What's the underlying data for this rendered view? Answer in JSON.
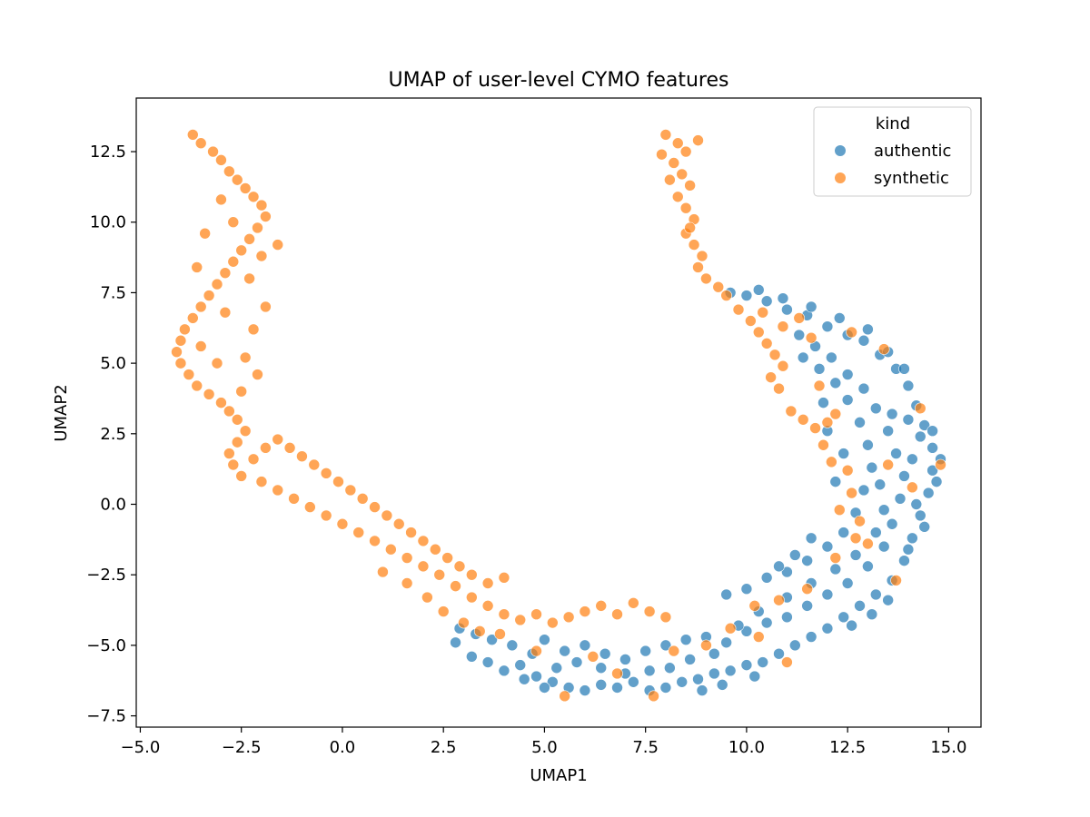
{
  "chart_data": {
    "type": "scatter",
    "title": "UMAP of user-level CYMO features",
    "xlabel": "UMAP1",
    "ylabel": "UMAP2",
    "xlim": [
      -5.1,
      15.8
    ],
    "ylim": [
      -7.9,
      14.4
    ],
    "xticks": [
      -5.0,
      -2.5,
      0.0,
      2.5,
      5.0,
      7.5,
      10.0,
      12.5,
      15.0
    ],
    "xtick_labels": [
      "−5.0",
      "−2.5",
      "0.0",
      "2.5",
      "5.0",
      "7.5",
      "10.0",
      "12.5",
      "15.0"
    ],
    "yticks": [
      -7.5,
      -5.0,
      -2.5,
      0.0,
      2.5,
      5.0,
      7.5,
      10.0,
      12.5
    ],
    "ytick_labels": [
      "−7.5",
      "−5.0",
      "−2.5",
      "0.0",
      "2.5",
      "5.0",
      "7.5",
      "10.0",
      "12.5"
    ],
    "grid": false,
    "legend": {
      "title": "kind",
      "placement": "top-right"
    },
    "series": [
      {
        "name": "authentic",
        "color": "#1f77b4",
        "points": [
          [
            2.8,
            -4.9
          ],
          [
            3.2,
            -5.4
          ],
          [
            3.6,
            -5.6
          ],
          [
            4.0,
            -5.9
          ],
          [
            4.4,
            -5.7
          ],
          [
            4.8,
            -6.1
          ],
          [
            5.2,
            -6.3
          ],
          [
            5.6,
            -6.5
          ],
          [
            6.0,
            -6.6
          ],
          [
            6.4,
            -6.4
          ],
          [
            6.8,
            -6.5
          ],
          [
            7.2,
            -6.3
          ],
          [
            7.6,
            -6.6
          ],
          [
            8.0,
            -6.5
          ],
          [
            8.4,
            -6.3
          ],
          [
            8.8,
            -6.2
          ],
          [
            9.2,
            -6.0
          ],
          [
            9.6,
            -5.9
          ],
          [
            10.0,
            -5.7
          ],
          [
            10.4,
            -5.6
          ],
          [
            10.8,
            -5.3
          ],
          [
            11.2,
            -5.0
          ],
          [
            11.6,
            -4.7
          ],
          [
            12.0,
            -4.4
          ],
          [
            12.4,
            -4.0
          ],
          [
            12.8,
            -3.6
          ],
          [
            13.2,
            -3.2
          ],
          [
            13.6,
            -2.7
          ],
          [
            13.9,
            -2.0
          ],
          [
            14.1,
            -1.2
          ],
          [
            14.3,
            -0.4
          ],
          [
            14.5,
            0.4
          ],
          [
            14.6,
            1.2
          ],
          [
            14.6,
            2.0
          ],
          [
            14.4,
            2.8
          ],
          [
            14.2,
            3.5
          ],
          [
            14.0,
            4.2
          ],
          [
            13.7,
            4.8
          ],
          [
            13.3,
            5.3
          ],
          [
            12.9,
            5.8
          ],
          [
            12.5,
            6.0
          ],
          [
            12.0,
            6.3
          ],
          [
            11.5,
            6.7
          ],
          [
            11.0,
            6.9
          ],
          [
            10.5,
            7.2
          ],
          [
            10.0,
            7.4
          ],
          [
            9.6,
            7.5
          ],
          [
            5.0,
            -4.8
          ],
          [
            5.5,
            -5.2
          ],
          [
            6.0,
            -5.0
          ],
          [
            6.5,
            -5.3
          ],
          [
            7.0,
            -5.5
          ],
          [
            7.5,
            -5.2
          ],
          [
            8.0,
            -5.0
          ],
          [
            8.5,
            -4.8
          ],
          [
            9.0,
            -4.7
          ],
          [
            9.5,
            -4.9
          ],
          [
            10.0,
            -4.5
          ],
          [
            10.5,
            -4.2
          ],
          [
            11.0,
            -4.0
          ],
          [
            11.5,
            -3.6
          ],
          [
            12.0,
            -3.2
          ],
          [
            12.5,
            -2.8
          ],
          [
            13.0,
            -2.2
          ],
          [
            13.4,
            -1.5
          ],
          [
            13.6,
            -0.7
          ],
          [
            13.8,
            0.2
          ],
          [
            13.9,
            1.0
          ],
          [
            13.7,
            1.8
          ],
          [
            13.5,
            2.6
          ],
          [
            13.2,
            3.4
          ],
          [
            12.9,
            4.1
          ],
          [
            12.5,
            4.6
          ],
          [
            12.1,
            5.2
          ],
          [
            11.7,
            5.6
          ],
          [
            11.3,
            6.0
          ],
          [
            9.5,
            -3.2
          ],
          [
            10.0,
            -3.0
          ],
          [
            10.5,
            -2.6
          ],
          [
            11.0,
            -2.4
          ],
          [
            11.5,
            -2.0
          ],
          [
            12.0,
            -1.5
          ],
          [
            12.4,
            -1.0
          ],
          [
            12.7,
            -0.3
          ],
          [
            12.9,
            0.5
          ],
          [
            13.1,
            1.3
          ],
          [
            13.0,
            2.1
          ],
          [
            12.8,
            2.9
          ],
          [
            12.5,
            3.7
          ],
          [
            12.2,
            4.3
          ],
          [
            11.8,
            4.8
          ],
          [
            11.4,
            5.2
          ],
          [
            11.0,
            -3.3
          ],
          [
            11.6,
            -2.8
          ],
          [
            12.2,
            -2.3
          ],
          [
            12.7,
            -1.8
          ],
          [
            13.2,
            -1.0
          ],
          [
            13.4,
            -0.2
          ],
          [
            13.3,
            0.7
          ],
          [
            13.6,
            3.2
          ],
          [
            14.0,
            3.0
          ],
          [
            14.3,
            2.4
          ],
          [
            14.1,
            1.6
          ],
          [
            14.4,
            -0.8
          ],
          [
            14.0,
            -1.6
          ],
          [
            12.2,
            0.8
          ],
          [
            12.4,
            1.8
          ],
          [
            12.0,
            2.6
          ],
          [
            11.9,
            3.6
          ],
          [
            11.6,
            -1.2
          ],
          [
            11.2,
            -1.8
          ],
          [
            10.8,
            -2.2
          ],
          [
            10.3,
            -3.8
          ],
          [
            9.8,
            -4.3
          ],
          [
            9.2,
            -5.3
          ],
          [
            8.6,
            -5.5
          ],
          [
            8.1,
            -5.8
          ],
          [
            7.6,
            -5.9
          ],
          [
            7.0,
            -6.0
          ],
          [
            6.4,
            -5.8
          ],
          [
            5.8,
            -5.6
          ],
          [
            5.3,
            -5.8
          ],
          [
            4.7,
            -5.3
          ],
          [
            4.2,
            -5.0
          ],
          [
            3.7,
            -4.8
          ],
          [
            3.3,
            -4.6
          ],
          [
            2.9,
            -4.4
          ],
          [
            4.5,
            -6.2
          ],
          [
            5.0,
            -6.5
          ],
          [
            8.9,
            -6.6
          ],
          [
            9.4,
            -6.4
          ],
          [
            10.2,
            -6.1
          ],
          [
            12.6,
            -4.3
          ],
          [
            13.1,
            -3.9
          ],
          [
            13.5,
            -3.4
          ],
          [
            14.2,
            0.0
          ],
          [
            14.7,
            0.8
          ],
          [
            14.8,
            1.6
          ],
          [
            14.6,
            2.6
          ],
          [
            13.9,
            4.8
          ],
          [
            13.5,
            5.4
          ],
          [
            13.0,
            6.2
          ],
          [
            12.3,
            6.6
          ],
          [
            11.6,
            7.0
          ],
          [
            10.9,
            7.3
          ],
          [
            10.3,
            7.6
          ]
        ]
      },
      {
        "name": "synthetic",
        "color": "#ff7f0e",
        "points": [
          [
            -3.7,
            13.1
          ],
          [
            -3.5,
            12.8
          ],
          [
            -3.2,
            12.5
          ],
          [
            -3.0,
            12.2
          ],
          [
            -2.8,
            11.8
          ],
          [
            -2.6,
            11.5
          ],
          [
            -2.4,
            11.2
          ],
          [
            -2.2,
            10.9
          ],
          [
            -2.0,
            10.6
          ],
          [
            -1.9,
            10.2
          ],
          [
            -2.1,
            9.8
          ],
          [
            -2.3,
            9.4
          ],
          [
            -2.5,
            9.0
          ],
          [
            -2.7,
            8.6
          ],
          [
            -2.9,
            8.2
          ],
          [
            -3.1,
            7.8
          ],
          [
            -3.3,
            7.4
          ],
          [
            -3.5,
            7.0
          ],
          [
            -3.7,
            6.6
          ],
          [
            -3.9,
            6.2
          ],
          [
            -4.0,
            5.8
          ],
          [
            -4.1,
            5.4
          ],
          [
            -4.0,
            5.0
          ],
          [
            -3.8,
            4.6
          ],
          [
            -3.6,
            4.2
          ],
          [
            -3.3,
            3.9
          ],
          [
            -3.0,
            3.6
          ],
          [
            -2.8,
            3.3
          ],
          [
            -2.6,
            3.0
          ],
          [
            -2.4,
            2.6
          ],
          [
            -2.6,
            2.2
          ],
          [
            -2.8,
            1.8
          ],
          [
            -2.7,
            1.4
          ],
          [
            -2.5,
            1.0
          ],
          [
            -2.2,
            1.6
          ],
          [
            -1.9,
            2.0
          ],
          [
            -1.6,
            2.3
          ],
          [
            -1.3,
            2.0
          ],
          [
            -1.0,
            1.7
          ],
          [
            -0.7,
            1.4
          ],
          [
            -0.4,
            1.1
          ],
          [
            -0.1,
            0.8
          ],
          [
            0.2,
            0.5
          ],
          [
            0.5,
            0.2
          ],
          [
            0.8,
            -0.1
          ],
          [
            1.1,
            -0.4
          ],
          [
            1.4,
            -0.7
          ],
          [
            1.7,
            -1.0
          ],
          [
            2.0,
            -1.3
          ],
          [
            2.3,
            -1.6
          ],
          [
            2.6,
            -1.9
          ],
          [
            2.9,
            -2.2
          ],
          [
            3.2,
            -2.5
          ],
          [
            3.6,
            -2.8
          ],
          [
            4.0,
            -2.6
          ],
          [
            -2.0,
            0.8
          ],
          [
            -1.6,
            0.5
          ],
          [
            -1.2,
            0.2
          ],
          [
            -0.8,
            -0.1
          ],
          [
            -0.4,
            -0.4
          ],
          [
            0.0,
            -0.7
          ],
          [
            0.4,
            -1.0
          ],
          [
            0.8,
            -1.3
          ],
          [
            1.2,
            -1.6
          ],
          [
            1.6,
            -1.9
          ],
          [
            2.0,
            -2.2
          ],
          [
            2.4,
            -2.5
          ],
          [
            2.8,
            -2.9
          ],
          [
            3.2,
            -3.3
          ],
          [
            3.6,
            -3.6
          ],
          [
            4.0,
            -3.9
          ],
          [
            4.4,
            -4.1
          ],
          [
            4.8,
            -3.9
          ],
          [
            5.2,
            -4.2
          ],
          [
            5.6,
            -4.0
          ],
          [
            6.0,
            -3.8
          ],
          [
            6.4,
            -3.6
          ],
          [
            6.8,
            -3.9
          ],
          [
            7.2,
            -3.5
          ],
          [
            7.6,
            -3.8
          ],
          [
            8.0,
            -4.0
          ],
          [
            2.5,
            -3.8
          ],
          [
            3.0,
            -4.2
          ],
          [
            3.4,
            -4.5
          ],
          [
            2.1,
            -3.3
          ],
          [
            1.6,
            -2.8
          ],
          [
            1.0,
            -2.4
          ],
          [
            -3.0,
            10.8
          ],
          [
            -2.7,
            10.0
          ],
          [
            -3.4,
            9.6
          ],
          [
            -2.3,
            8.0
          ],
          [
            -3.6,
            8.4
          ],
          [
            -2.9,
            6.8
          ],
          [
            -2.2,
            6.2
          ],
          [
            -3.5,
            5.6
          ],
          [
            -2.4,
            5.2
          ],
          [
            -2.1,
            4.6
          ],
          [
            -3.1,
            5.0
          ],
          [
            -2.5,
            4.0
          ],
          [
            -1.9,
            7.0
          ],
          [
            -2.0,
            8.8
          ],
          [
            -1.6,
            9.2
          ],
          [
            8.0,
            13.1
          ],
          [
            8.3,
            12.8
          ],
          [
            8.5,
            12.5
          ],
          [
            8.2,
            12.1
          ],
          [
            8.4,
            11.7
          ],
          [
            8.6,
            11.3
          ],
          [
            8.3,
            10.9
          ],
          [
            8.5,
            10.5
          ],
          [
            8.7,
            10.1
          ],
          [
            8.5,
            9.6
          ],
          [
            8.7,
            9.2
          ],
          [
            8.9,
            8.8
          ],
          [
            8.8,
            8.4
          ],
          [
            9.0,
            8.0
          ],
          [
            9.3,
            7.7
          ],
          [
            9.5,
            7.4
          ],
          [
            7.9,
            12.4
          ],
          [
            8.8,
            12.9
          ],
          [
            8.1,
            11.5
          ],
          [
            8.6,
            9.8
          ],
          [
            9.8,
            6.9
          ],
          [
            10.1,
            6.5
          ],
          [
            10.3,
            6.1
          ],
          [
            10.5,
            5.7
          ],
          [
            10.7,
            5.3
          ],
          [
            10.9,
            4.9
          ],
          [
            10.6,
            4.5
          ],
          [
            10.8,
            4.1
          ],
          [
            10.4,
            6.8
          ],
          [
            10.9,
            6.3
          ],
          [
            11.3,
            6.6
          ],
          [
            11.6,
            5.9
          ],
          [
            11.1,
            3.3
          ],
          [
            11.4,
            3.0
          ],
          [
            11.7,
            2.7
          ],
          [
            12.0,
            2.9
          ],
          [
            12.2,
            3.2
          ],
          [
            11.9,
            2.1
          ],
          [
            12.1,
            1.5
          ],
          [
            12.5,
            1.2
          ],
          [
            12.6,
            0.4
          ],
          [
            12.3,
            -0.2
          ],
          [
            12.8,
            -0.6
          ],
          [
            13.0,
            -1.4
          ],
          [
            12.2,
            -1.9
          ],
          [
            11.5,
            -3.0
          ],
          [
            10.8,
            -3.4
          ],
          [
            10.2,
            -3.6
          ],
          [
            9.6,
            -4.4
          ],
          [
            9.0,
            -5.0
          ],
          [
            8.2,
            -5.2
          ],
          [
            7.7,
            -6.8
          ],
          [
            6.8,
            -6.0
          ],
          [
            6.2,
            -5.4
          ],
          [
            5.5,
            -6.8
          ],
          [
            4.8,
            -5.2
          ],
          [
            3.9,
            -4.6
          ],
          [
            13.5,
            1.4
          ],
          [
            14.1,
            0.6
          ],
          [
            14.8,
            1.4
          ],
          [
            14.3,
            3.4
          ],
          [
            13.4,
            5.5
          ],
          [
            12.6,
            6.1
          ],
          [
            11.8,
            4.2
          ],
          [
            12.7,
            -1.2
          ],
          [
            13.7,
            -2.7
          ],
          [
            11.0,
            -5.6
          ],
          [
            10.3,
            -4.7
          ]
        ]
      }
    ]
  }
}
